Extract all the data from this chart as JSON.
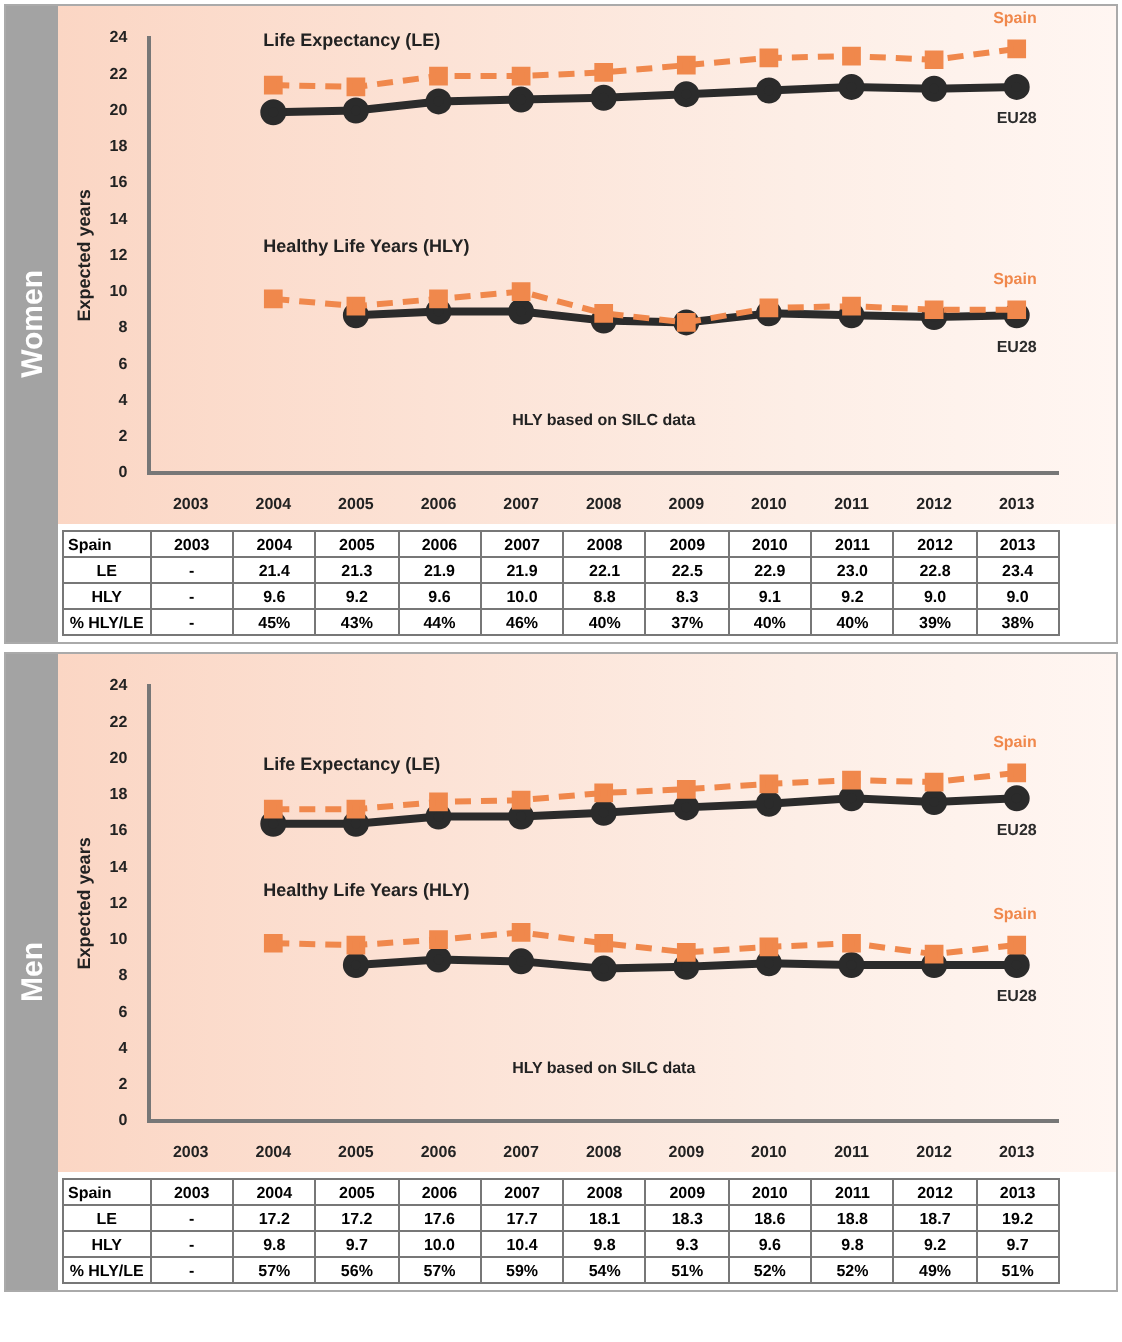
{
  "chart_data": [
    {
      "type": "line",
      "title": "Women",
      "ylabel": "Expected years",
      "categories": [
        "2003",
        "2004",
        "2005",
        "2006",
        "2007",
        "2008",
        "2009",
        "2010",
        "2011",
        "2012",
        "2013"
      ],
      "ylim": [
        0,
        24
      ],
      "yticks": [
        0,
        2,
        4,
        6,
        8,
        10,
        12,
        14,
        16,
        18,
        20,
        22,
        24
      ],
      "grid": false,
      "legend": "right",
      "series": [
        {
          "name": "Spain",
          "color": "#f0884c",
          "line_style": "dashed",
          "marker": "square",
          "values": [
            null,
            21.4,
            21.3,
            21.9,
            21.9,
            22.1,
            22.5,
            22.9,
            23.0,
            22.8,
            23.4
          ],
          "value_labels": [
            "-",
            "21.4",
            "21.3",
            "21.9",
            "21.9",
            "22.1",
            "22.5",
            "22.9",
            "23.0",
            "22.8",
            "23.4"
          ]
        },
        {
          "name": "EU28",
          "color": "#2b2b2b",
          "line_style": "solid",
          "marker": "circle",
          "values": [
            null,
            19.9,
            20.0,
            20.5,
            20.6,
            20.7,
            20.9,
            21.1,
            21.3,
            21.2,
            21.3
          ]
        },
        {
          "name": "Spain",
          "color": "#f0884c",
          "line_style": "dashed",
          "marker": "square",
          "values": [
            null,
            9.6,
            9.2,
            9.6,
            10.0,
            8.8,
            8.3,
            9.1,
            9.2,
            9.0,
            9.0
          ],
          "value_labels": [
            "-",
            "9.6",
            "9.2",
            "9.6",
            "10.0",
            "8.8",
            "8.3",
            "9.1",
            "9.2",
            "9.0",
            "9.0"
          ]
        },
        {
          "name": "EU28",
          "color": "#2b2b2b",
          "line_style": "solid",
          "marker": "circle",
          "values": [
            null,
            null,
            8.7,
            8.9,
            8.9,
            8.4,
            8.3,
            8.8,
            8.7,
            8.6,
            8.7
          ]
        }
      ],
      "annotations": [
        "Life Expectancy (LE)",
        "Healthy Life Years (HLY)",
        "HLY based on SILC data",
        "Spain",
        "LE",
        "HLY",
        "% HLY/LE",
        "-",
        "45%",
        "43%",
        "44%",
        "46%",
        "40%",
        "37%",
        "40%",
        "40%",
        "39%",
        "38%"
      ]
    },
    {
      "type": "line",
      "title": "Men",
      "ylabel": "Expected years",
      "categories": [
        "2003",
        "2004",
        "2005",
        "2006",
        "2007",
        "2008",
        "2009",
        "2010",
        "2011",
        "2012",
        "2013"
      ],
      "ylim": [
        0,
        24
      ],
      "yticks": [
        0,
        2,
        4,
        6,
        8,
        10,
        12,
        14,
        16,
        18,
        20,
        22,
        24
      ],
      "grid": false,
      "legend": "right",
      "series": [
        {
          "name": "Spain",
          "color": "#f0884c",
          "line_style": "dashed",
          "marker": "square",
          "values": [
            null,
            17.2,
            17.2,
            17.6,
            17.7,
            18.1,
            18.3,
            18.6,
            18.8,
            18.7,
            19.2
          ],
          "value_labels": [
            "-",
            "17.2",
            "17.2",
            "17.6",
            "17.7",
            "18.1",
            "18.3",
            "18.6",
            "18.8",
            "18.7",
            "19.2"
          ]
        },
        {
          "name": "EU28",
          "color": "#2b2b2b",
          "line_style": "solid",
          "marker": "circle",
          "values": [
            null,
            16.4,
            16.4,
            16.8,
            16.8,
            17.0,
            17.3,
            17.5,
            17.8,
            17.6,
            17.8
          ]
        },
        {
          "name": "Spain",
          "color": "#f0884c",
          "line_style": "dashed",
          "marker": "square",
          "values": [
            null,
            9.8,
            9.7,
            10.0,
            10.4,
            9.8,
            9.3,
            9.6,
            9.8,
            9.2,
            9.7
          ],
          "value_labels": [
            "-",
            "9.8",
            "9.7",
            "10.0",
            "10.4",
            "9.8",
            "9.3",
            "9.6",
            "9.8",
            "9.2",
            "9.7"
          ]
        },
        {
          "name": "EU28",
          "color": "#2b2b2b",
          "line_style": "solid",
          "marker": "circle",
          "values": [
            null,
            null,
            8.6,
            8.9,
            8.8,
            8.4,
            8.5,
            8.7,
            8.6,
            8.6,
            8.6
          ]
        }
      ],
      "annotations": [
        "Life Expectancy (LE)",
        "Healthy Life Years (HLY)",
        "HLY based on SILC data",
        "Spain",
        "LE",
        "HLY",
        "% HLY/LE",
        "-",
        "57%",
        "56%",
        "57%",
        "59%",
        "54%",
        "51%",
        "52%",
        "52%",
        "49%",
        "51%"
      ]
    }
  ]
}
